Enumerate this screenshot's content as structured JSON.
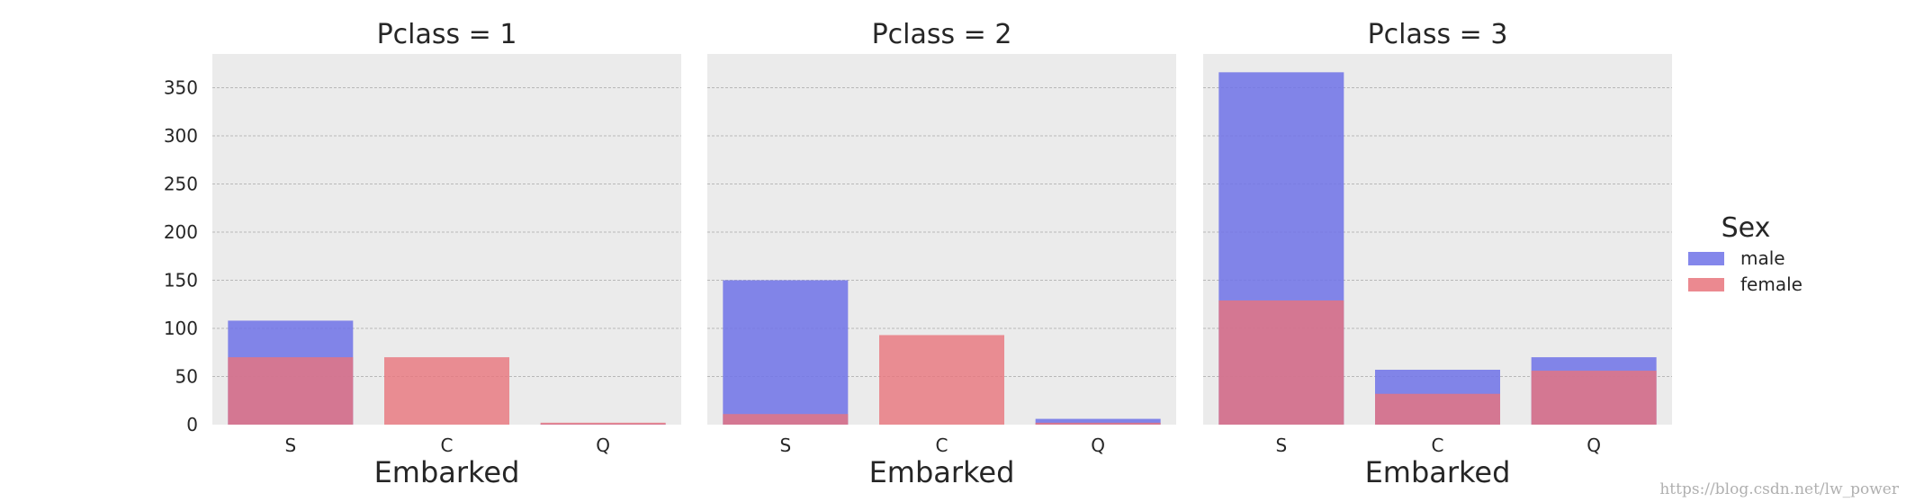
{
  "chart_data": {
    "type": "bar",
    "grid": true,
    "ylim": [
      0,
      385
    ],
    "yticks": [
      0,
      50,
      100,
      150,
      200,
      250,
      300,
      350
    ],
    "categories": [
      "S",
      "C",
      "Q"
    ],
    "colors": {
      "male": "#6f72e8",
      "female": "#e8747c",
      "overlap": "#d06a82",
      "panel_bg": "#ebebeb",
      "grid": "#b8b8b8"
    },
    "legend": {
      "title": "Sex",
      "position": "right",
      "entries": [
        "male",
        "female"
      ]
    },
    "panels": [
      {
        "title": "Pclass = 1",
        "xlabel": "Embarked",
        "series": [
          {
            "name": "male",
            "values": [
              108,
              0,
              1
            ]
          },
          {
            "name": "female",
            "values": [
              70,
              70,
              2
            ]
          }
        ]
      },
      {
        "title": "Pclass = 2",
        "xlabel": "Embarked",
        "series": [
          {
            "name": "male",
            "values": [
              150,
              0,
              6
            ]
          },
          {
            "name": "female",
            "values": [
              11,
              93,
              2
            ]
          }
        ]
      },
      {
        "title": "Pclass = 3",
        "xlabel": "Embarked",
        "series": [
          {
            "name": "male",
            "values": [
              366,
              57,
              70
            ]
          },
          {
            "name": "female",
            "values": [
              129,
              32,
              56
            ]
          }
        ]
      }
    ]
  },
  "watermark": "https://blog.csdn.net/lw_power"
}
